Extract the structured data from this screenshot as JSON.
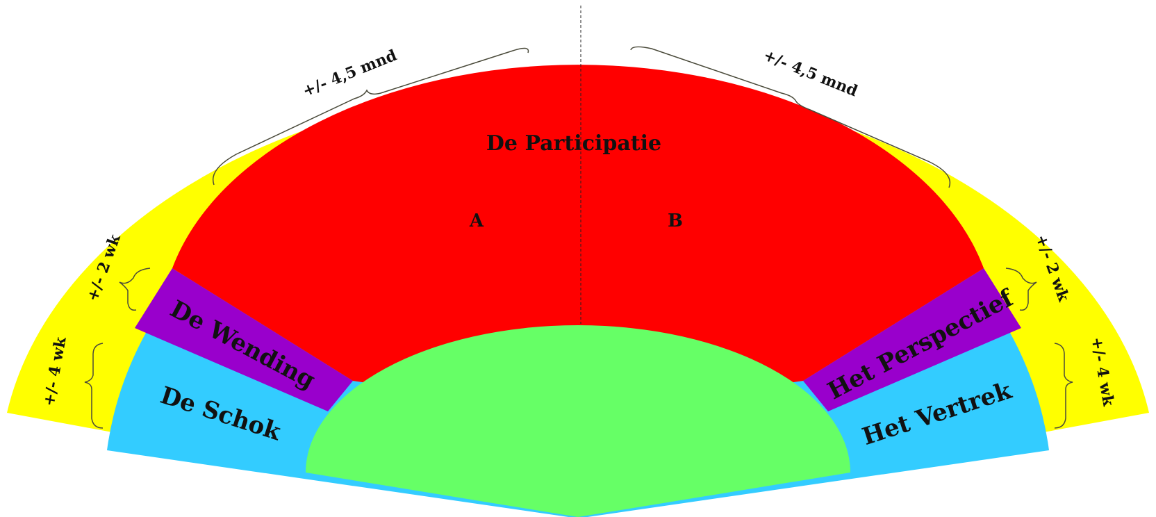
{
  "diagram": {
    "segments": {
      "schok_left": "De Schok",
      "wending": "De Wending",
      "participatie": "De Participatie",
      "part_a": "A",
      "part_b": "B",
      "perspectief": "Het Perspectief",
      "vertrek": "Het Vertrek"
    },
    "durations": {
      "left_outer": "+/- 4 wk",
      "left_mid": "+/- 2 wk",
      "top_left": "+/- 4,5 mnd",
      "top_right": "+/- 4,5 mnd",
      "right_mid": "+/- 2 wk",
      "right_outer": "+/- 4 wk"
    },
    "colors": {
      "outer_ring": "#ffff00",
      "participatie": "#ff0000",
      "wending_perspectief": "#9900cc",
      "schok_vertrek": "#33ccff",
      "center": "#66ff66"
    }
  }
}
